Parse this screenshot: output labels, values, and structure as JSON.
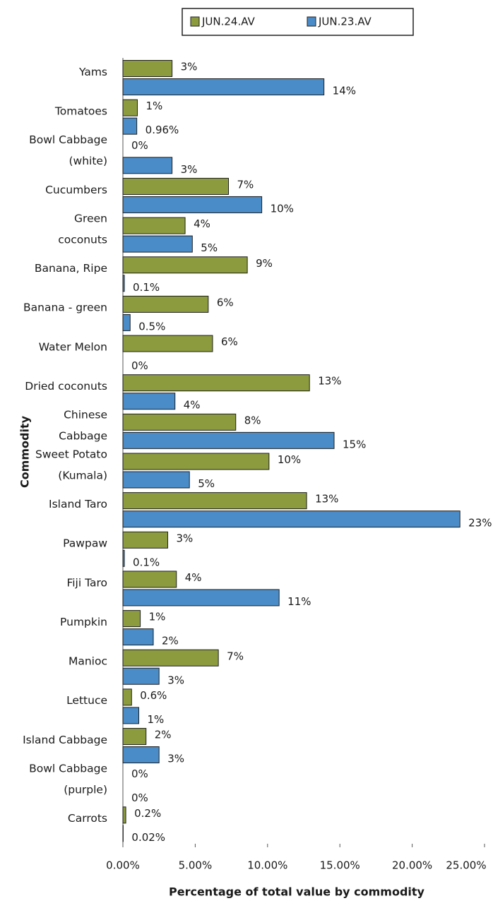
{
  "chart_data": {
    "type": "bar",
    "orientation": "horizontal",
    "xlabel": "Percentage of total value by commodity",
    "ylabel": "Commodity",
    "categories": [
      "Yams",
      "Tomatoes",
      "Bowl Cabbage\n(white)",
      "Cucumbers",
      "Green\ncoconuts",
      "Banana, Ripe",
      "Banana - green",
      "Water Melon",
      "Dried coconuts",
      "Chinese\nCabbage",
      "Sweet Potato\n(Kumala)",
      "Island Taro",
      "Pawpaw",
      "Fiji Taro",
      "Pumpkin",
      "Manioc",
      "Lettuce",
      "Island Cabbage",
      "Bowl Cabbage\n(purple)",
      "Carrots"
    ],
    "series": [
      {
        "name": "JUN.24.AV",
        "color": "#8c9b3e",
        "values": [
          3.4,
          1.0,
          0,
          7.3,
          4.3,
          8.6,
          5.9,
          6.2,
          12.9,
          7.8,
          10.1,
          12.7,
          3.1,
          3.7,
          1.2,
          6.6,
          0.6,
          1.6,
          0,
          0.2
        ],
        "value_labels": [
          "3%",
          "1%",
          "0%",
          "7%",
          "4%",
          "9%",
          "6%",
          "6%",
          "13%",
          "8%",
          "10%",
          "13%",
          "3%",
          "4%",
          "1%",
          "7%",
          "0.6%",
          "2%",
          "0%",
          "0.2%"
        ]
      },
      {
        "name": "JUN.23.AV",
        "color": "#4a8cc8",
        "values": [
          13.9,
          0.96,
          3.4,
          9.6,
          4.8,
          0.1,
          0.5,
          0,
          3.6,
          14.6,
          4.6,
          23.3,
          0.1,
          10.8,
          2.1,
          2.5,
          1.1,
          2.5,
          0,
          0.02
        ],
        "value_labels": [
          "14%",
          "0.96%",
          "3%",
          "10%",
          "5%",
          "0.1%",
          "0.5%",
          "0%",
          "4%",
          "15%",
          "5%",
          "23%",
          "0.1%",
          "11%",
          "2%",
          "3%",
          "1%",
          "3%",
          "0%",
          "0.02%"
        ]
      }
    ],
    "xlim": [
      0,
      25
    ],
    "xticks": [
      {
        "value": 0,
        "label": "0.00%"
      },
      {
        "value": 5,
        "label": "5.00%"
      },
      {
        "value": 10,
        "label": "10.00%"
      },
      {
        "value": 15,
        "label": "15.00%"
      },
      {
        "value": 20,
        "label": "20.00%"
      },
      {
        "value": 25,
        "label": "25.00%"
      }
    ],
    "legend": "top"
  }
}
